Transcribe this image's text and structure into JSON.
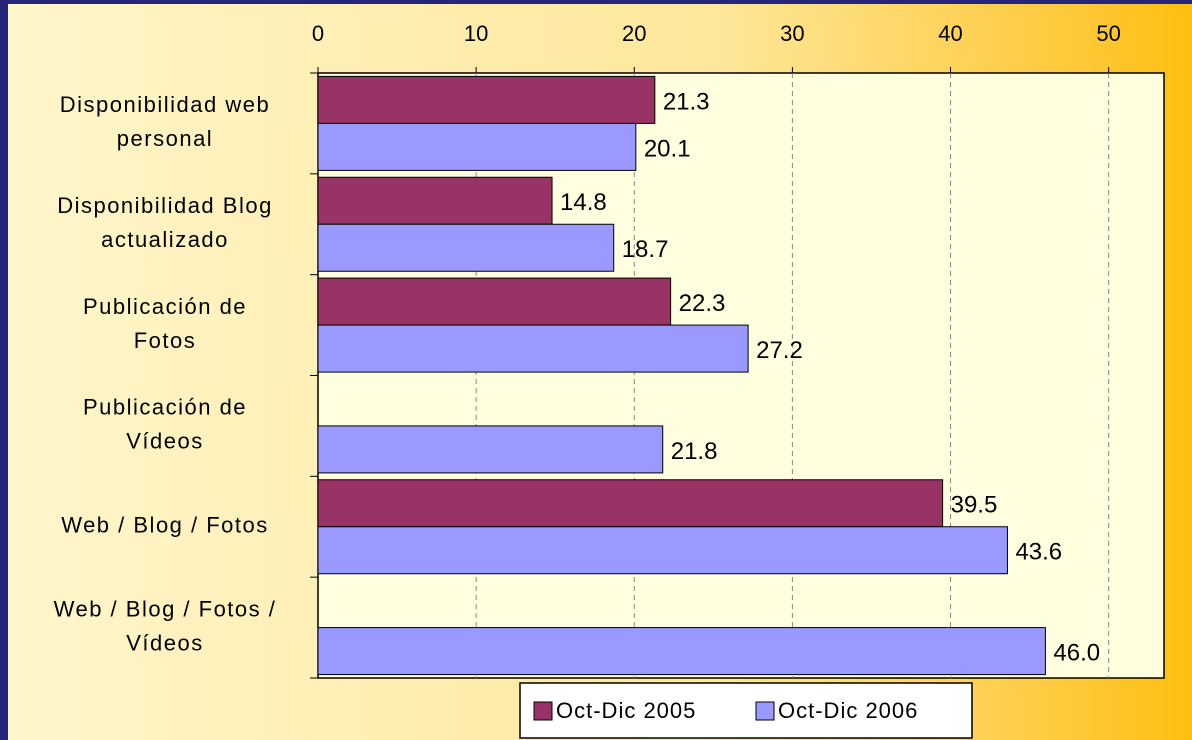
{
  "chart_data": {
    "type": "hbar",
    "categories": [
      [
        "Disponibilidad web",
        "personal"
      ],
      [
        "Disponibilidad Blog",
        "actualizado"
      ],
      [
        "Publicación de",
        "Fotos"
      ],
      [
        "Publicación de",
        "Vídeos"
      ],
      [
        "Web / Blog / Fotos"
      ],
      [
        "Web / Blog / Fotos /",
        "Vídeos"
      ]
    ],
    "series": [
      {
        "name": "Oct-Dic 2005",
        "color": "#993366",
        "values": [
          21.3,
          14.8,
          22.3,
          null,
          39.5,
          null
        ],
        "value_labels": [
          "21.3",
          "14.8",
          "22.3",
          null,
          "39.5",
          null
        ]
      },
      {
        "name": "Oct-Dic 2006",
        "color": "#9999ff",
        "values": [
          20.1,
          18.7,
          27.2,
          21.8,
          43.6,
          46.0
        ],
        "value_labels": [
          "20.1",
          "18.7",
          "27.2",
          "21.8",
          "43.6",
          "46.0"
        ]
      }
    ],
    "xlim": [
      0,
      53.5
    ],
    "xticks": [
      0,
      10,
      20,
      30,
      40,
      50
    ],
    "grid": true,
    "legend": "bottom"
  }
}
